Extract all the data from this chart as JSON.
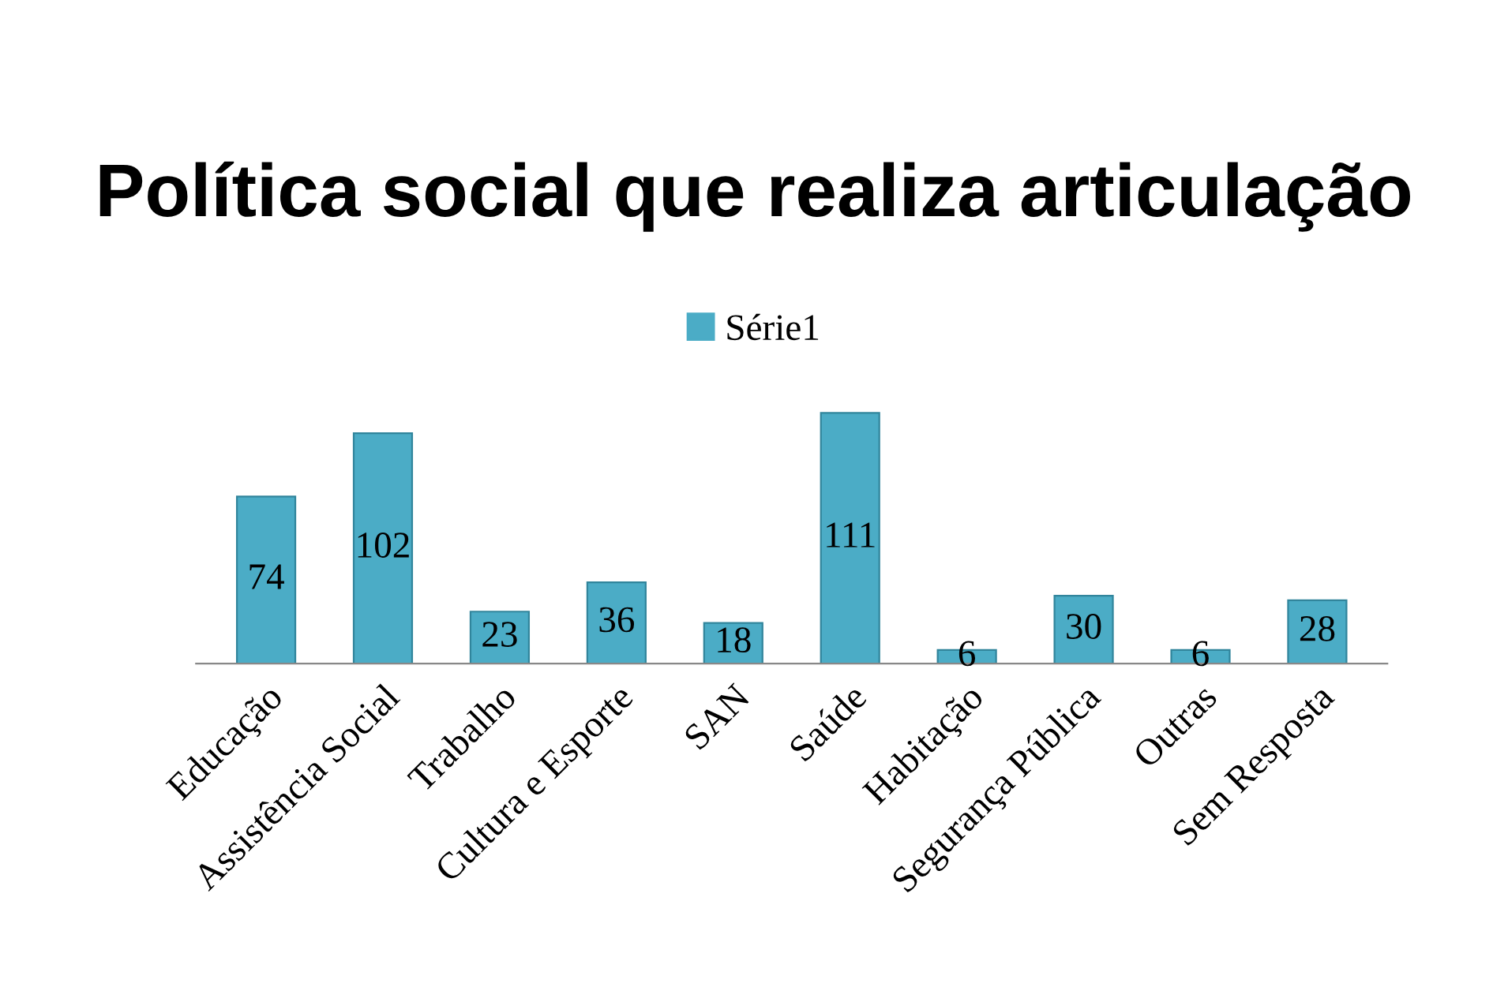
{
  "chart_data": {
    "type": "bar",
    "title": "Política social que realiza articulação",
    "categories": [
      "Educação",
      "Assistência Social",
      "Trabalho",
      "Cultura e Esporte",
      "SAN",
      "Saúde",
      "Habitação",
      "Segurança Pública",
      "Outras",
      "Sem Resposta"
    ],
    "series": [
      {
        "name": "Série1",
        "color": "#4bacc6",
        "values": [
          74,
          102,
          23,
          36,
          18,
          111,
          6,
          30,
          6,
          28
        ]
      }
    ],
    "data_labels": true,
    "legend": "top",
    "grid": false
  }
}
